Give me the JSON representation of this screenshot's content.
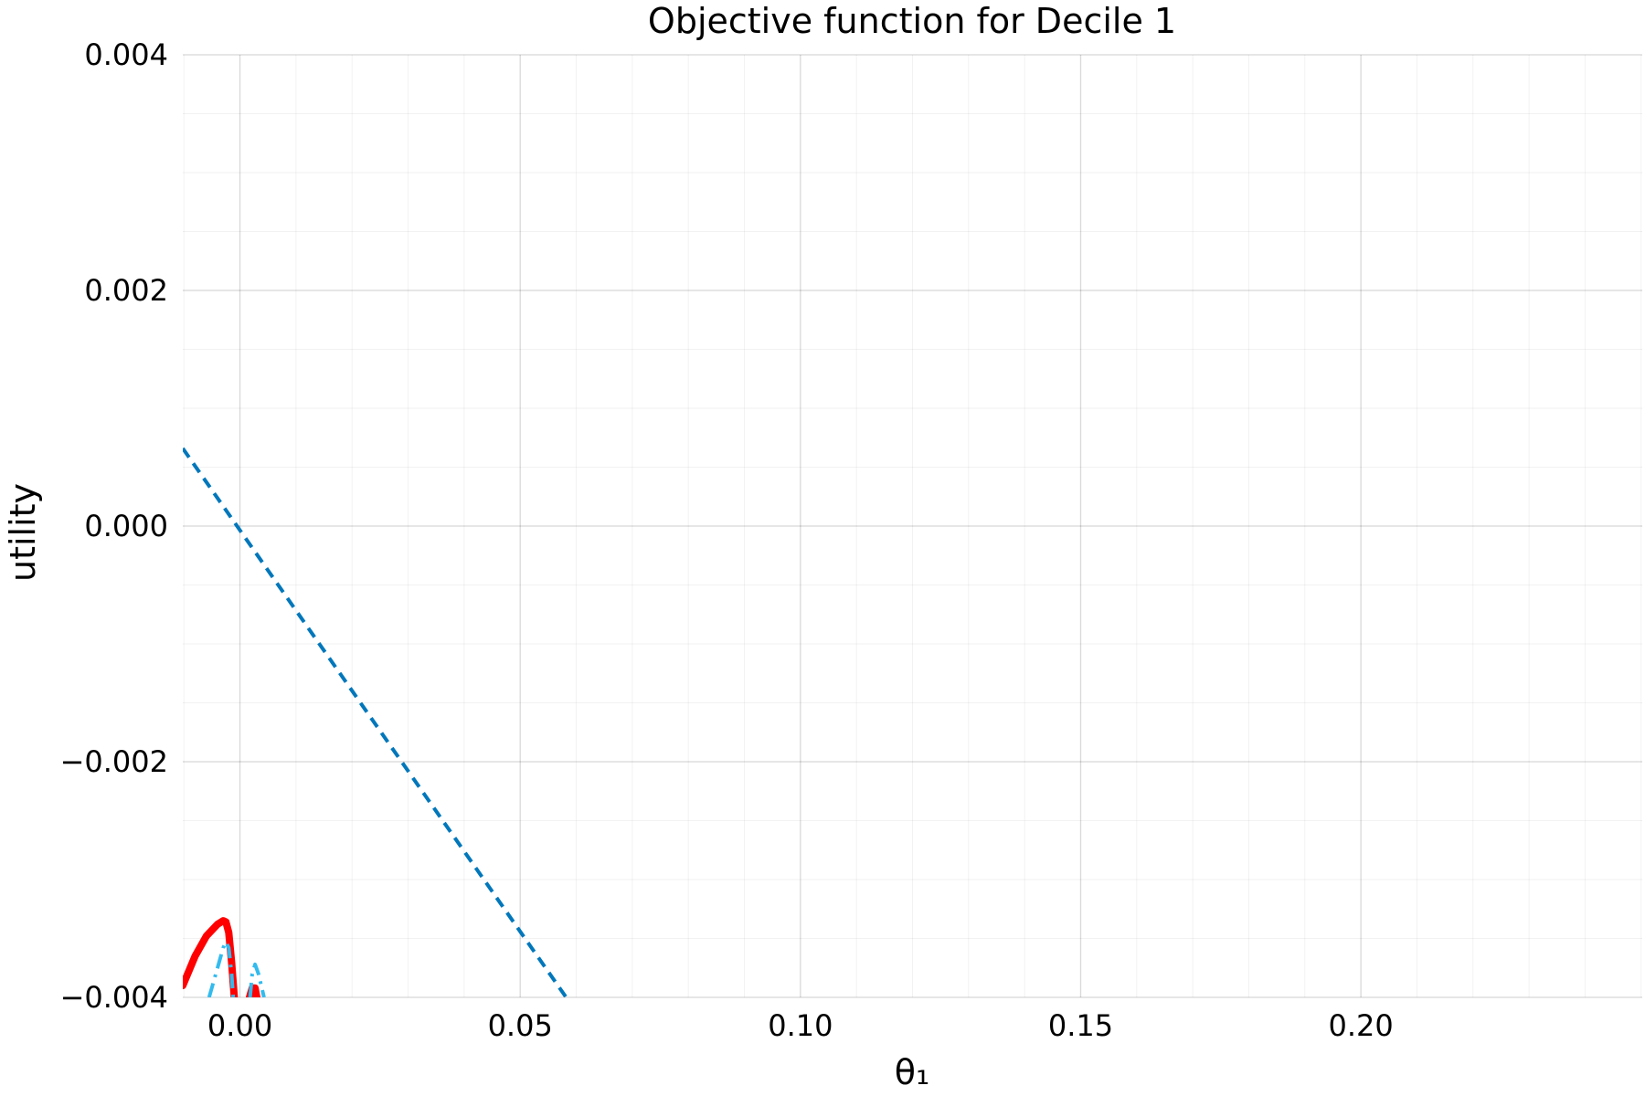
{
  "chart_data": {
    "type": "line",
    "title": "Objective function for Decile 1",
    "xlabel": "θ₁",
    "ylabel": "utility",
    "xlim": [
      -0.0102,
      0.2502
    ],
    "ylim": [
      -0.004,
      0.004
    ],
    "x_ticks": [
      0.0,
      0.05,
      0.1,
      0.15,
      0.2
    ],
    "x_tick_labels": [
      "0.00",
      "0.05",
      "0.10",
      "0.15",
      "0.20"
    ],
    "y_ticks": [
      -0.004,
      -0.002,
      0.0,
      0.002,
      0.004
    ],
    "y_tick_labels": [
      "−0.004",
      "−0.002",
      "0.000",
      "0.002",
      "0.004"
    ],
    "grid": true,
    "minor_grid": true,
    "legend": "none",
    "series": [
      {
        "style": "dashed",
        "color": "#0077BB",
        "x": [
          -0.0102,
          0.0582
        ],
        "y": [
          0.00066,
          -0.004
        ]
      },
      {
        "style": "solid",
        "color": "#FF0000",
        "x": [
          -0.0102,
          -0.008,
          -0.006,
          -0.004,
          -0.003,
          -0.0025,
          -0.002,
          -0.0015,
          -0.001
        ],
        "y": [
          -0.0039,
          -0.00365,
          -0.00348,
          -0.00338,
          -0.00335,
          -0.00336,
          -0.00345,
          -0.0037,
          -0.004
        ]
      },
      {
        "style": "solid",
        "color": "#FF0000",
        "x": [
          0.0017,
          0.0022,
          0.0027,
          0.003
        ],
        "y": [
          -0.004,
          -0.00392,
          -0.00392,
          -0.004
        ]
      },
      {
        "style": "dashdot",
        "color": "#33BBEE",
        "x": [
          -0.0055,
          -0.004,
          -0.003,
          -0.0025,
          -0.002,
          -0.0015,
          -0.0012
        ],
        "y": [
          -0.004,
          -0.00375,
          -0.00358,
          -0.00353,
          -0.00358,
          -0.0038,
          -0.004
        ]
      },
      {
        "style": "dashdot",
        "color": "#33BBEE",
        "x": [
          0.0018,
          0.0022,
          0.0027,
          0.0033,
          0.0043
        ],
        "y": [
          -0.004,
          -0.0038,
          -0.00372,
          -0.0038,
          -0.004
        ]
      }
    ]
  }
}
